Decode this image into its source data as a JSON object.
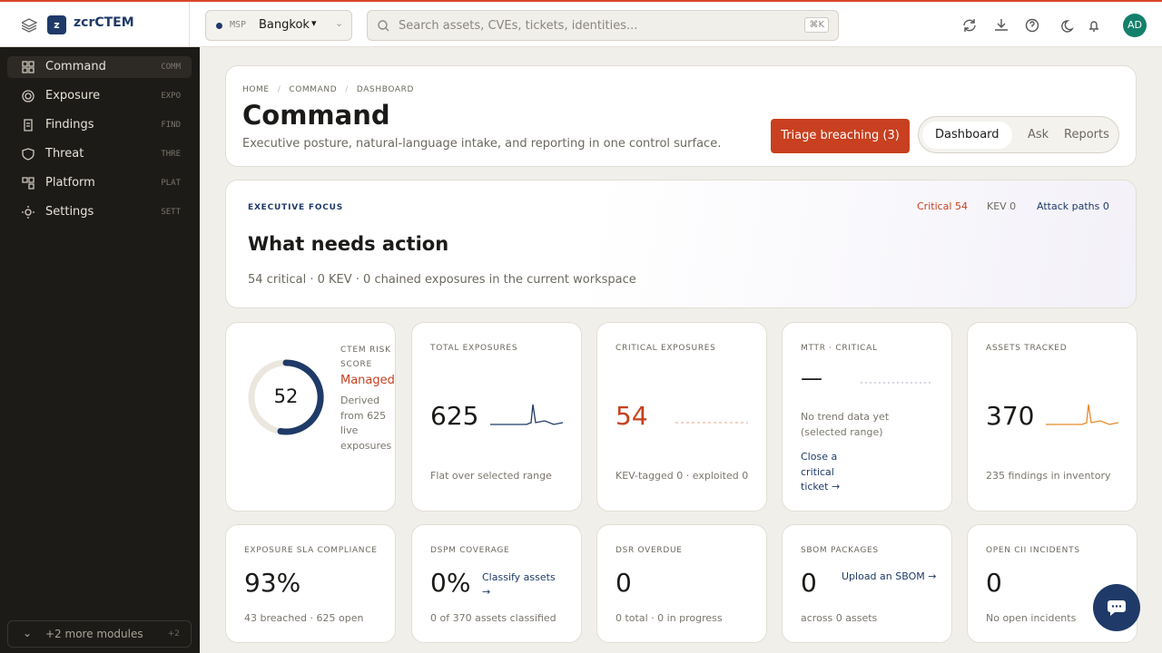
{
  "brand": "zcrCTEM",
  "tenant": {
    "tag": "MSP",
    "name": "Bangkok"
  },
  "search": {
    "placeholder": "Search assets, CVEs, tickets, identities...",
    "shortcut": "⌘K"
  },
  "user": {
    "initials": "AD"
  },
  "nav": [
    {
      "label": "Command",
      "code": "COMM"
    },
    {
      "label": "Exposure",
      "code": "EXPO"
    },
    {
      "label": "Findings",
      "code": "FIND"
    },
    {
      "label": "Threat",
      "code": "THRE"
    },
    {
      "label": "Platform",
      "code": "PLAT"
    },
    {
      "label": "Settings",
      "code": "SETT"
    }
  ],
  "nav_more": {
    "label": "+2 more modules",
    "count": "+2"
  },
  "breadcrumb": [
    "HOME",
    "COMMAND",
    "DASHBOARD"
  ],
  "page": {
    "title": "Command",
    "subtitle": "Executive posture, natural-language intake, and reporting in one control surface."
  },
  "actions": {
    "primary": "Triage breaching (3)",
    "tabs": [
      "Dashboard",
      "Ask",
      "Reports"
    ]
  },
  "focus": {
    "eyebrow": "EXECUTIVE FOCUS",
    "title": "What needs action",
    "summary": "54 critical · 0 KEV · 0 chained exposures in the current workspace",
    "chips": [
      "Critical 54",
      "KEV 0",
      "Attack paths 0"
    ]
  },
  "risk": {
    "label": "CTEM RISK SCORE",
    "score": 52,
    "status": "Managed",
    "note": "Derived from 625 live exposures"
  },
  "metrics": [
    {
      "label": "TOTAL EXPOSURES",
      "value": "625",
      "note": "Flat over selected range"
    },
    {
      "label": "CRITICAL EXPOSURES",
      "value": "54",
      "note": "KEV-tagged 0 · exploited 0"
    },
    {
      "label": "MTTR · CRITICAL",
      "value": "—",
      "note": "No trend data yet (selected range)",
      "link": "Close a critical ticket →"
    },
    {
      "label": "ASSETS TRACKED",
      "value": "370",
      "note": "235 findings in inventory"
    },
    {
      "label": "EXPOSURE SLA COMPLIANCE",
      "value": "93%",
      "note": "43 breached · 625 open"
    },
    {
      "label": "DSPM COVERAGE",
      "value": "0%",
      "note": "0 of 370 assets classified",
      "link": "Classify assets →"
    },
    {
      "label": "DSR OVERDUE",
      "value": "0",
      "note": "0 total · 0 in progress"
    },
    {
      "label": "SBOM PACKAGES",
      "value": "0",
      "note": "across 0 assets",
      "link": "Upload an SBOM →"
    },
    {
      "label": "OPEN CII INCIDENTS",
      "value": "0",
      "note": "No open incidents"
    }
  ]
}
